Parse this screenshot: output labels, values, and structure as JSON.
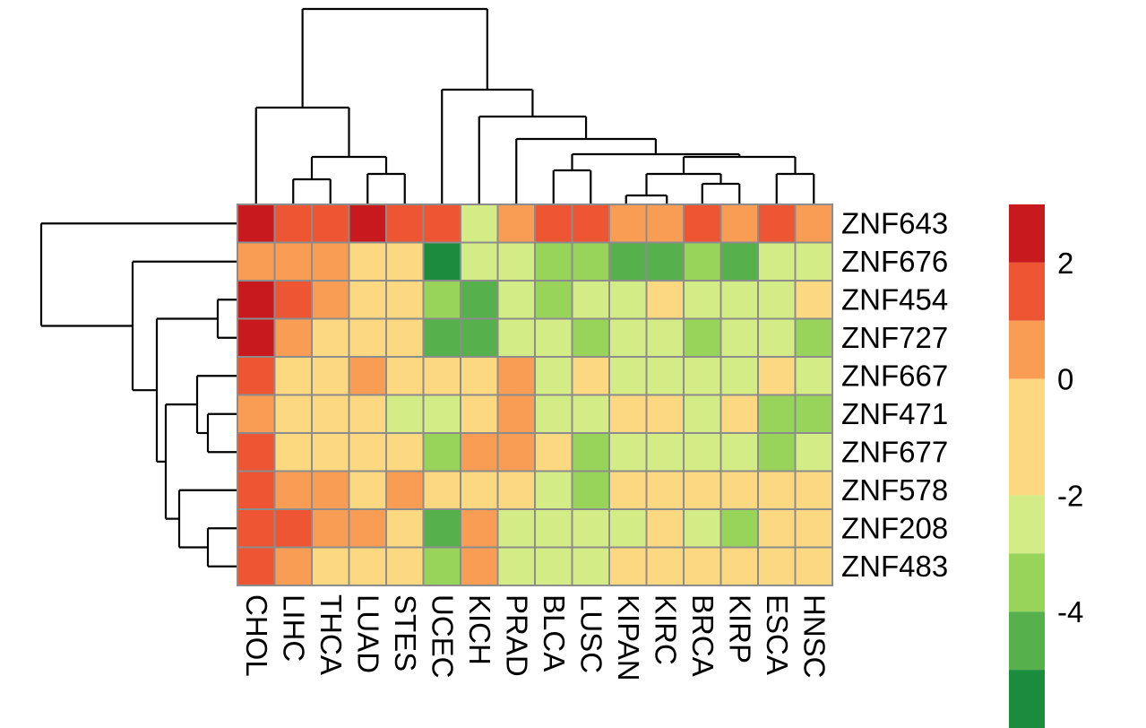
{
  "chart_data": {
    "type": "heatmap",
    "title": "",
    "xlabel": "",
    "ylabel": "",
    "columns": [
      "CHOL",
      "LIHC",
      "THCA",
      "LUAD",
      "STES",
      "UCEC",
      "KICH",
      "PRAD",
      "BLCA",
      "LUSC",
      "KIPAN",
      "KIRC",
      "BRCA",
      "KIRP",
      "ESCA",
      "HNSC"
    ],
    "rows": [
      "ZNF643",
      "ZNF676",
      "ZNF454",
      "ZNF727",
      "ZNF667",
      "ZNF471",
      "ZNF677",
      "ZNF578",
      "ZNF208",
      "ZNF483"
    ],
    "values": [
      [
        2.5,
        1.5,
        1.5,
        2.5,
        1.5,
        1.5,
        -2.5,
        0.5,
        1.5,
        1.5,
        0.5,
        0.5,
        1.5,
        0.5,
        1.5,
        0.5
      ],
      [
        0.5,
        0.5,
        0.5,
        -1.0,
        -1.0,
        -5.5,
        -2.5,
        -2.5,
        -3.5,
        -3.5,
        -4.5,
        -4.5,
        -3.5,
        -4.5,
        -2.5,
        -2.5
      ],
      [
        2.5,
        1.5,
        0.5,
        -1.0,
        -1.0,
        -3.5,
        -4.5,
        -2.5,
        -3.5,
        -2.5,
        -2.5,
        -1.0,
        -2.5,
        -2.5,
        -2.5,
        -1.0
      ],
      [
        2.5,
        0.5,
        -1.0,
        -1.0,
        -1.0,
        -4.5,
        -4.5,
        -2.5,
        -2.5,
        -3.5,
        -2.5,
        -2.5,
        -3.5,
        -2.5,
        -2.5,
        -3.5
      ],
      [
        1.5,
        -1.0,
        -1.0,
        0.5,
        -1.0,
        -1.0,
        -1.0,
        0.5,
        -2.5,
        -1.0,
        -2.5,
        -2.5,
        -2.5,
        -2.5,
        -1.0,
        -2.5
      ],
      [
        0.5,
        -1.0,
        -1.0,
        -1.0,
        -2.5,
        -2.5,
        -1.0,
        0.5,
        -2.5,
        -2.5,
        -1.0,
        -1.0,
        -2.5,
        -1.0,
        -3.5,
        -3.5
      ],
      [
        1.5,
        -1.0,
        -1.0,
        -1.0,
        -1.0,
        -3.5,
        0.5,
        0.5,
        -1.0,
        -3.5,
        -2.5,
        -2.5,
        -2.5,
        -2.5,
        -3.5,
        -2.5
      ],
      [
        1.5,
        0.5,
        0.5,
        -1.0,
        0.5,
        -1.0,
        -1.0,
        -1.0,
        -2.5,
        -3.5,
        -1.0,
        -1.0,
        -1.0,
        -1.0,
        -1.0,
        -1.0
      ],
      [
        1.5,
        1.5,
        0.5,
        0.5,
        -1.0,
        -4.5,
        0.5,
        -2.5,
        -2.5,
        -2.5,
        -2.5,
        -1.0,
        -2.5,
        -3.5,
        -1.0,
        -1.0
      ],
      [
        1.5,
        0.5,
        -1.0,
        -1.0,
        -1.0,
        -3.5,
        0.5,
        -2.5,
        -2.5,
        -2.5,
        -1.0,
        -1.0,
        -1.0,
        -1.0,
        -1.0,
        -1.0
      ]
    ],
    "color_bins": [
      {
        "min": 2.0,
        "max": 3.0,
        "color": "#C8191F"
      },
      {
        "min": 1.0,
        "max": 2.0,
        "color": "#EE5533"
      },
      {
        "min": 0.0,
        "max": 1.0,
        "color": "#F99D55"
      },
      {
        "min": -2.0,
        "max": 0.0,
        "color": "#FCD981"
      },
      {
        "min": -3.0,
        "max": -2.0,
        "color": "#D4EC85"
      },
      {
        "min": -4.0,
        "max": -3.0,
        "color": "#99D45A"
      },
      {
        "min": -5.0,
        "max": -4.0,
        "color": "#56B14C"
      },
      {
        "min": -6.0,
        "max": -5.0,
        "color": "#1B8C3E"
      }
    ],
    "legend": {
      "placement": "right",
      "ticks": [
        {
          "value": 2,
          "label": "2"
        },
        {
          "value": 0,
          "label": "0"
        },
        {
          "value": -2,
          "label": "-2"
        },
        {
          "value": -4,
          "label": "-4"
        }
      ]
    },
    "cell_border_color": "#8c8c8c",
    "column_dendrogram": true,
    "row_dendrogram": true
  }
}
